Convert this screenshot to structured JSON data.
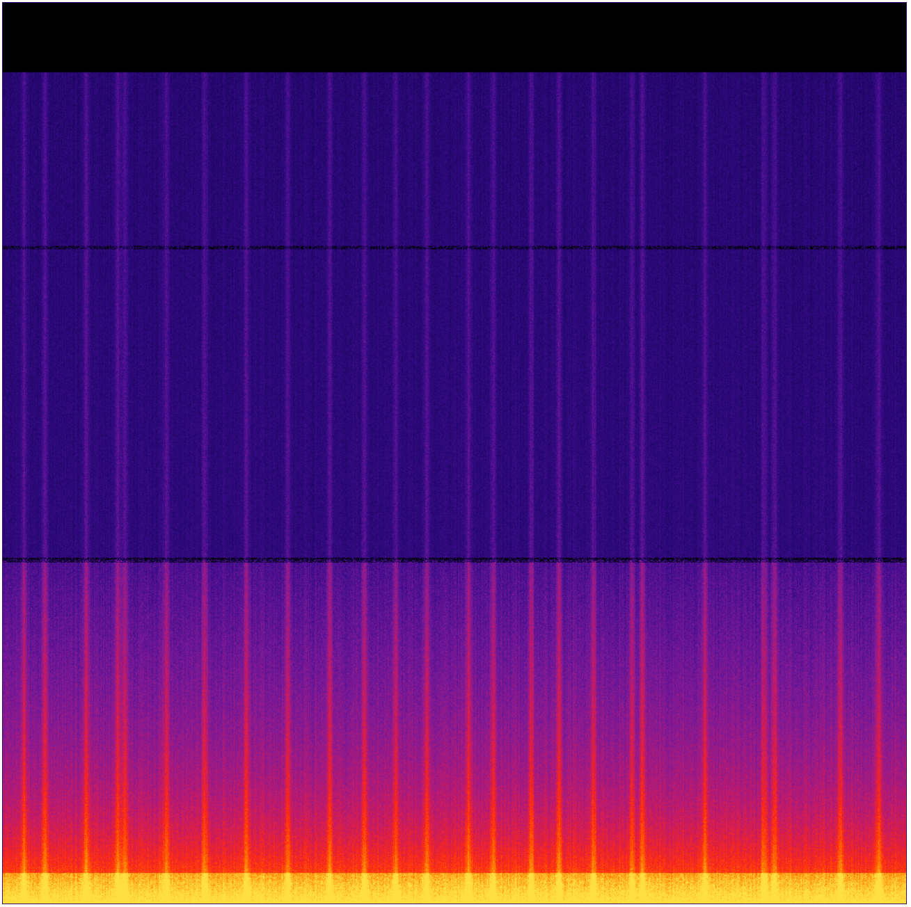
{
  "image": {
    "kind": "spectrogram",
    "colormap_stops": [
      "#000000",
      "#1a0560",
      "#3a0c8a",
      "#7a1a9a",
      "#c41a6a",
      "#ff2a10",
      "#ff7a00",
      "#ffe040"
    ],
    "dominant_colors": {
      "silence_band": "#000000",
      "upper_noise": "#24087a",
      "mid_noise": "#6a1490",
      "lower_energy": "#d82038",
      "low_freq_peak": "#ffd030",
      "border": "#3a0a6a"
    }
  }
}
